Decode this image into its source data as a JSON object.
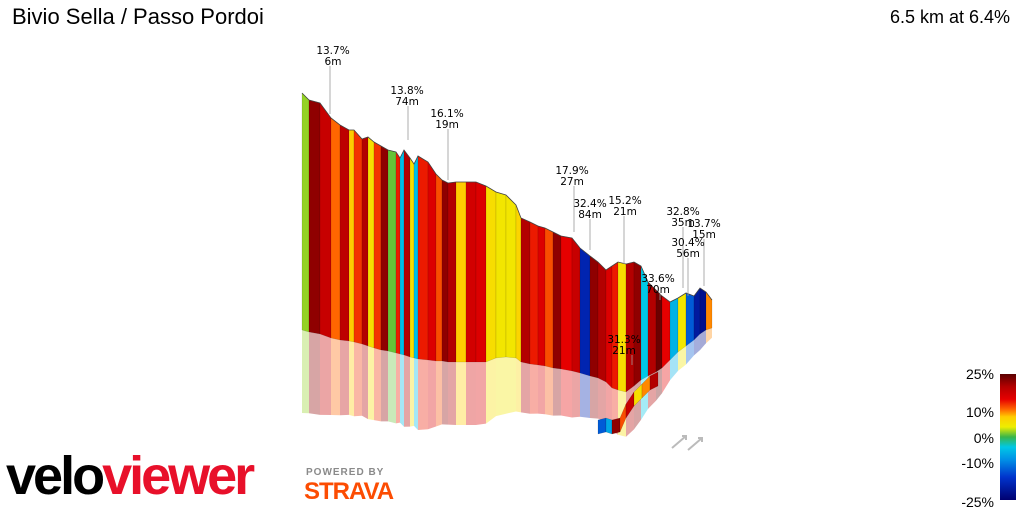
{
  "header": {
    "title": "Bivio Sella / Passo Pordoi",
    "summary": "6.5 km at 6.4%"
  },
  "chart_data": {
    "type": "area",
    "annotations": [
      {
        "grade": "13.7%",
        "length": "6m"
      },
      {
        "grade": "13.8%",
        "length": "74m"
      },
      {
        "grade": "16.1%",
        "length": "19m"
      },
      {
        "grade": "17.9%",
        "length": "27m"
      },
      {
        "grade": "32.4%",
        "length": "84m"
      },
      {
        "grade": "15.2%",
        "length": "21m"
      },
      {
        "grade": "31.3%",
        "length": "21m"
      },
      {
        "grade": "32.8%",
        "length": "35m"
      },
      {
        "grade": "13.7%",
        "length": "15m"
      },
      {
        "grade": "30.4%",
        "length": "56m"
      },
      {
        "grade": "33.6%",
        "length": "70m"
      }
    ],
    "legend": {
      "labels": [
        "25%",
        "10%",
        "0%",
        "-10%",
        "-25%"
      ],
      "range": [
        -25,
        25
      ]
    }
  },
  "branding": {
    "logo_part1": "velo",
    "logo_part2": "viewer",
    "powered": "POWERED BY",
    "strava": "STRAVA"
  }
}
